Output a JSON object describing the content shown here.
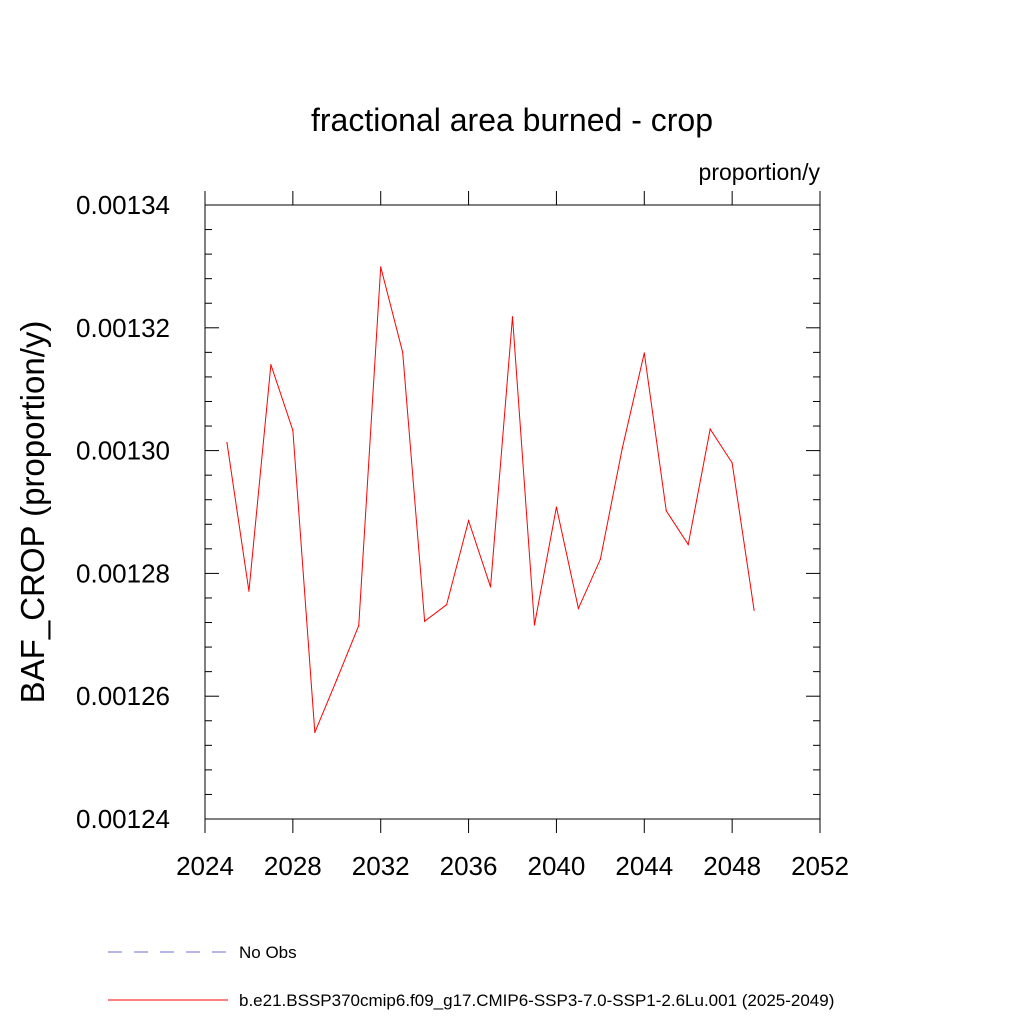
{
  "chart_data": {
    "type": "line",
    "title": "fractional area burned - crop",
    "units": "proportion/y",
    "ylabel": "BAF_CROP  (proportion/y)",
    "xlabel": "",
    "xlim": [
      2024,
      2052
    ],
    "ylim": [
      0.00124,
      0.00134
    ],
    "x_ticks": [
      "2024",
      "2028",
      "2032",
      "2036",
      "2040",
      "2044",
      "2048",
      "2052"
    ],
    "y_ticks": [
      "0.00124",
      "0.00126",
      "0.00128",
      "0.00130",
      "0.00132",
      "0.00134"
    ],
    "series": [
      {
        "name": "b.e21.BSSP370cmip6.f09_g17.CMIP6-SSP3-7.0-SSP1-2.6Lu.001 (2025-2049)",
        "color": "#ff0000",
        "x": [
          2025,
          2026,
          2027,
          2028,
          2029,
          2030,
          2031,
          2032,
          2033,
          2034,
          2035,
          2036,
          2037,
          2038,
          2039,
          2040,
          2041,
          2042,
          2043,
          2044,
          2045,
          2046,
          2047,
          2048,
          2049
        ],
        "values": [
          0.0013013,
          0.0012771,
          0.001314,
          0.0013033,
          0.0012541,
          0.0012627,
          0.0012715,
          0.0013299,
          0.001316,
          0.0012722,
          0.0012749,
          0.0012886,
          0.0012778,
          0.0013218,
          0.0012716,
          0.0012908,
          0.0012743,
          0.0012823,
          0.0013004,
          0.0013159,
          0.0012902,
          0.0012847,
          0.0013035,
          0.001298,
          0.001274
        ]
      }
    ],
    "legend": {
      "placement": "bottom",
      "entries": [
        {
          "label": "No Obs",
          "color": "#6e6ed0",
          "style": "dashed"
        },
        {
          "label": "b.e21.BSSP370cmip6.f09_g17.CMIP6-SSP3-7.0-SSP1-2.6Lu.001 (2025-2049)",
          "color": "#ff0000",
          "style": "solid"
        }
      ]
    }
  }
}
